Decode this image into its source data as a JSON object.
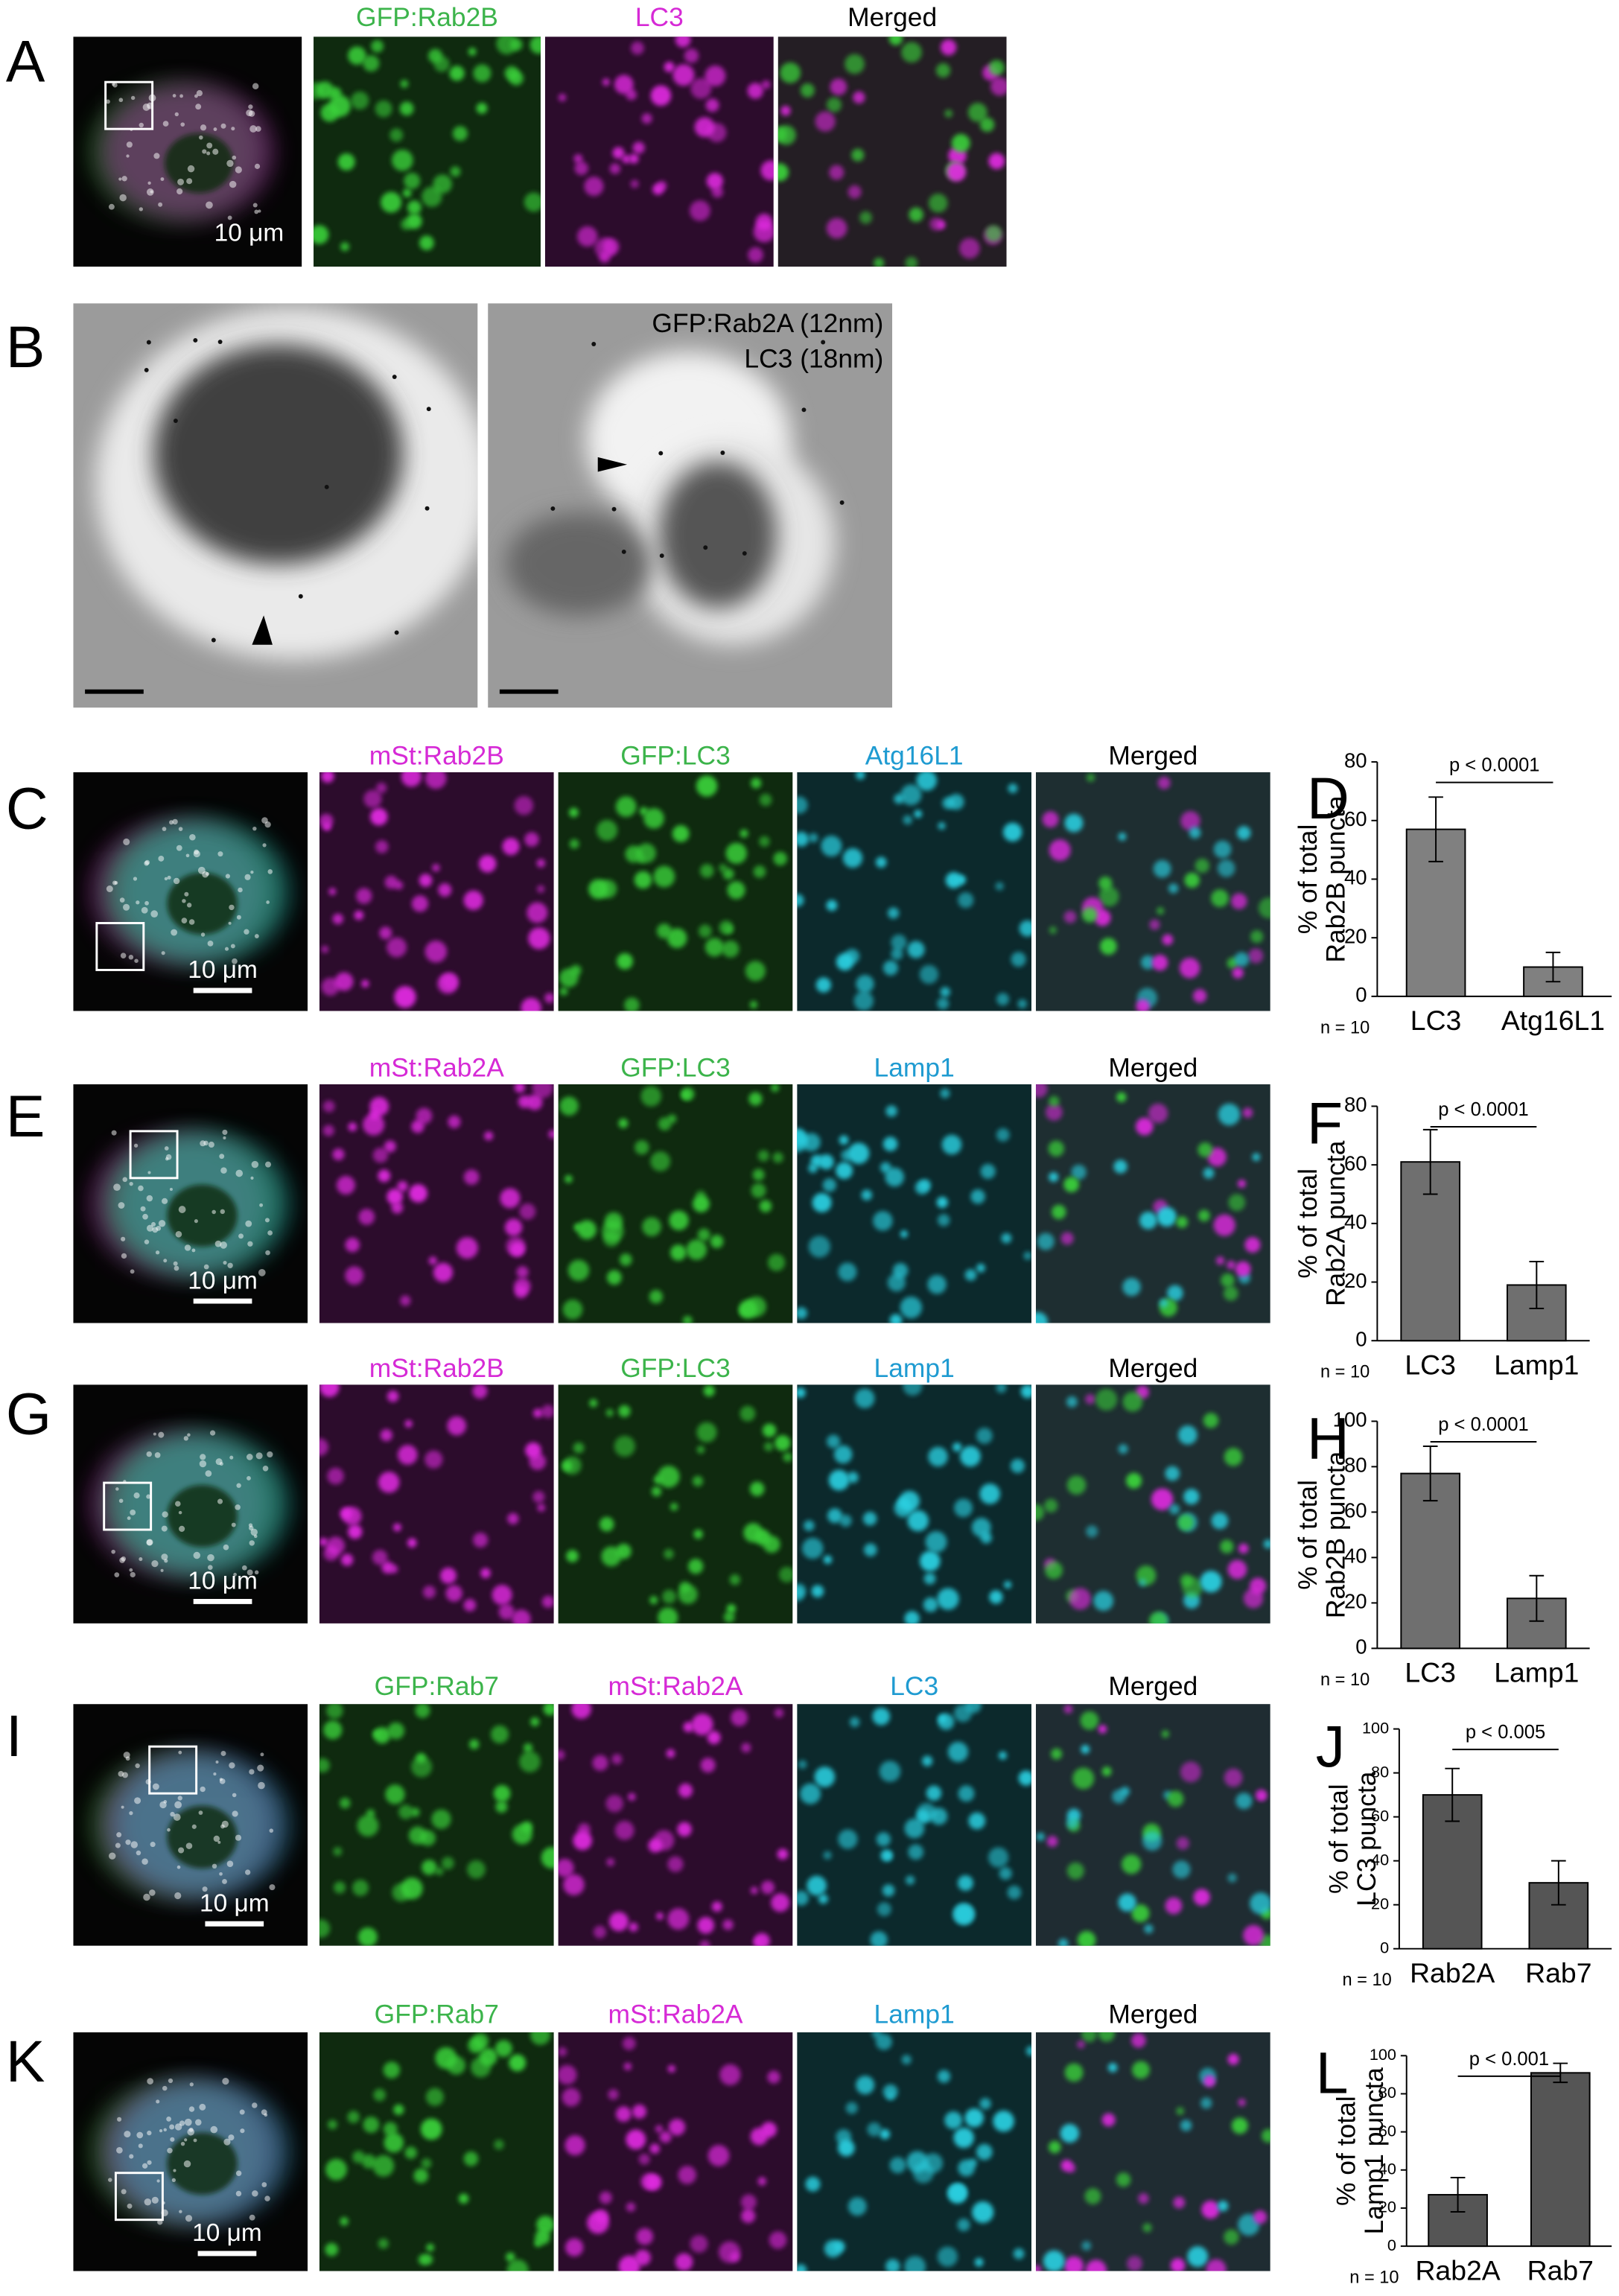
{
  "panels": [
    {
      "letter": "A",
      "channels": [
        {
          "name": "GFP:Rab2B",
          "color": "#3cb44b"
        },
        {
          "name": "LC3",
          "color": "#d62ad6"
        },
        {
          "name": "Merged",
          "color": "#000000"
        }
      ],
      "scale_bar": "10 μm"
    },
    {
      "letter": "B",
      "labels": [
        "GFP:Rab2A (12nm)",
        "LC3 (18nm)"
      ]
    },
    {
      "letter": "C",
      "channels": [
        {
          "name": "mSt:Rab2B",
          "color": "#d62ad6"
        },
        {
          "name": "GFP:LC3",
          "color": "#3cb44b"
        },
        {
          "name": "Atg16L1",
          "color": "#1f9bd1"
        },
        {
          "name": "Merged",
          "color": "#000000"
        }
      ],
      "scale_bar": "10 μm"
    },
    {
      "letter": "E",
      "channels": [
        {
          "name": "mSt:Rab2A",
          "color": "#d62ad6"
        },
        {
          "name": "GFP:LC3",
          "color": "#3cb44b"
        },
        {
          "name": "Lamp1",
          "color": "#1f9bd1"
        },
        {
          "name": "Merged",
          "color": "#000000"
        }
      ],
      "scale_bar": "10 μm"
    },
    {
      "letter": "G",
      "channels": [
        {
          "name": "mSt:Rab2B",
          "color": "#d62ad6"
        },
        {
          "name": "GFP:LC3",
          "color": "#3cb44b"
        },
        {
          "name": "Lamp1",
          "color": "#1f9bd1"
        },
        {
          "name": "Merged",
          "color": "#000000"
        }
      ],
      "scale_bar": "10 μm"
    },
    {
      "letter": "I",
      "channels": [
        {
          "name": "GFP:Rab7",
          "color": "#3cb44b"
        },
        {
          "name": "mSt:Rab2A",
          "color": "#d62ad6"
        },
        {
          "name": "LC3",
          "color": "#1f9bd1"
        },
        {
          "name": "Merged",
          "color": "#000000"
        }
      ],
      "scale_bar": "10 μm"
    },
    {
      "letter": "K",
      "channels": [
        {
          "name": "GFP:Rab7",
          "color": "#3cb44b"
        },
        {
          "name": "mSt:Rab2A",
          "color": "#d62ad6"
        },
        {
          "name": "Lamp1",
          "color": "#1f9bd1"
        },
        {
          "name": "Merged",
          "color": "#000000"
        }
      ],
      "scale_bar": "10 μm"
    }
  ],
  "chart_data": [
    {
      "type": "bar",
      "label": "D",
      "categories": [
        "LC3",
        "Atg16L1"
      ],
      "values": [
        57,
        10
      ],
      "errors": [
        11,
        5
      ],
      "ylim": [
        0,
        80
      ],
      "yticks": [
        0,
        20,
        40,
        60,
        80
      ],
      "ylabel": [
        "% of total",
        "Rab2B puncta"
      ],
      "annotation": "p < 0.0001",
      "note": "n = 10",
      "color": "#808080"
    },
    {
      "type": "bar",
      "label": "F",
      "categories": [
        "LC3",
        "Lamp1"
      ],
      "values": [
        61,
        19
      ],
      "errors": [
        11,
        8
      ],
      "ylim": [
        0,
        80
      ],
      "yticks": [
        0,
        20,
        40,
        60,
        80
      ],
      "ylabel": [
        "% of total",
        "Rab2A puncta"
      ],
      "annotation": "p < 0.0001",
      "note": "n = 10",
      "color": "#6f6f6f"
    },
    {
      "type": "bar",
      "label": "H",
      "categories": [
        "LC3",
        "Lamp1"
      ],
      "values": [
        77,
        22
      ],
      "errors": [
        12,
        10
      ],
      "ylim": [
        0,
        100
      ],
      "yticks": [
        0,
        20,
        40,
        60,
        80,
        100
      ],
      "ylabel": [
        "% of total",
        "Rab2B puncta"
      ],
      "annotation": "p < 0.0001",
      "note": "n = 10",
      "color": "#6f6f6f"
    },
    {
      "type": "bar",
      "label": "J",
      "categories": [
        "Rab2A",
        "Rab7"
      ],
      "values": [
        70,
        30
      ],
      "errors": [
        12,
        10
      ],
      "ylim": [
        0,
        100
      ],
      "yticks": [
        0,
        20,
        40,
        60,
        80,
        100
      ],
      "ylabel": [
        "% of total",
        "LC3 puncta"
      ],
      "annotation": "p < 0.005",
      "note": "n = 10",
      "color": "#555555"
    },
    {
      "type": "bar",
      "label": "L",
      "categories": [
        "Rab2A",
        "Rab7"
      ],
      "values": [
        27,
        91
      ],
      "errors": [
        9,
        5
      ],
      "ylim": [
        0,
        100
      ],
      "yticks": [
        0,
        20,
        40,
        60,
        80,
        100
      ],
      "ylabel": [
        "% of total",
        "Lamp1 puncta"
      ],
      "annotation": "p < 0.001",
      "note": "n = 10",
      "color": "#555555"
    }
  ]
}
